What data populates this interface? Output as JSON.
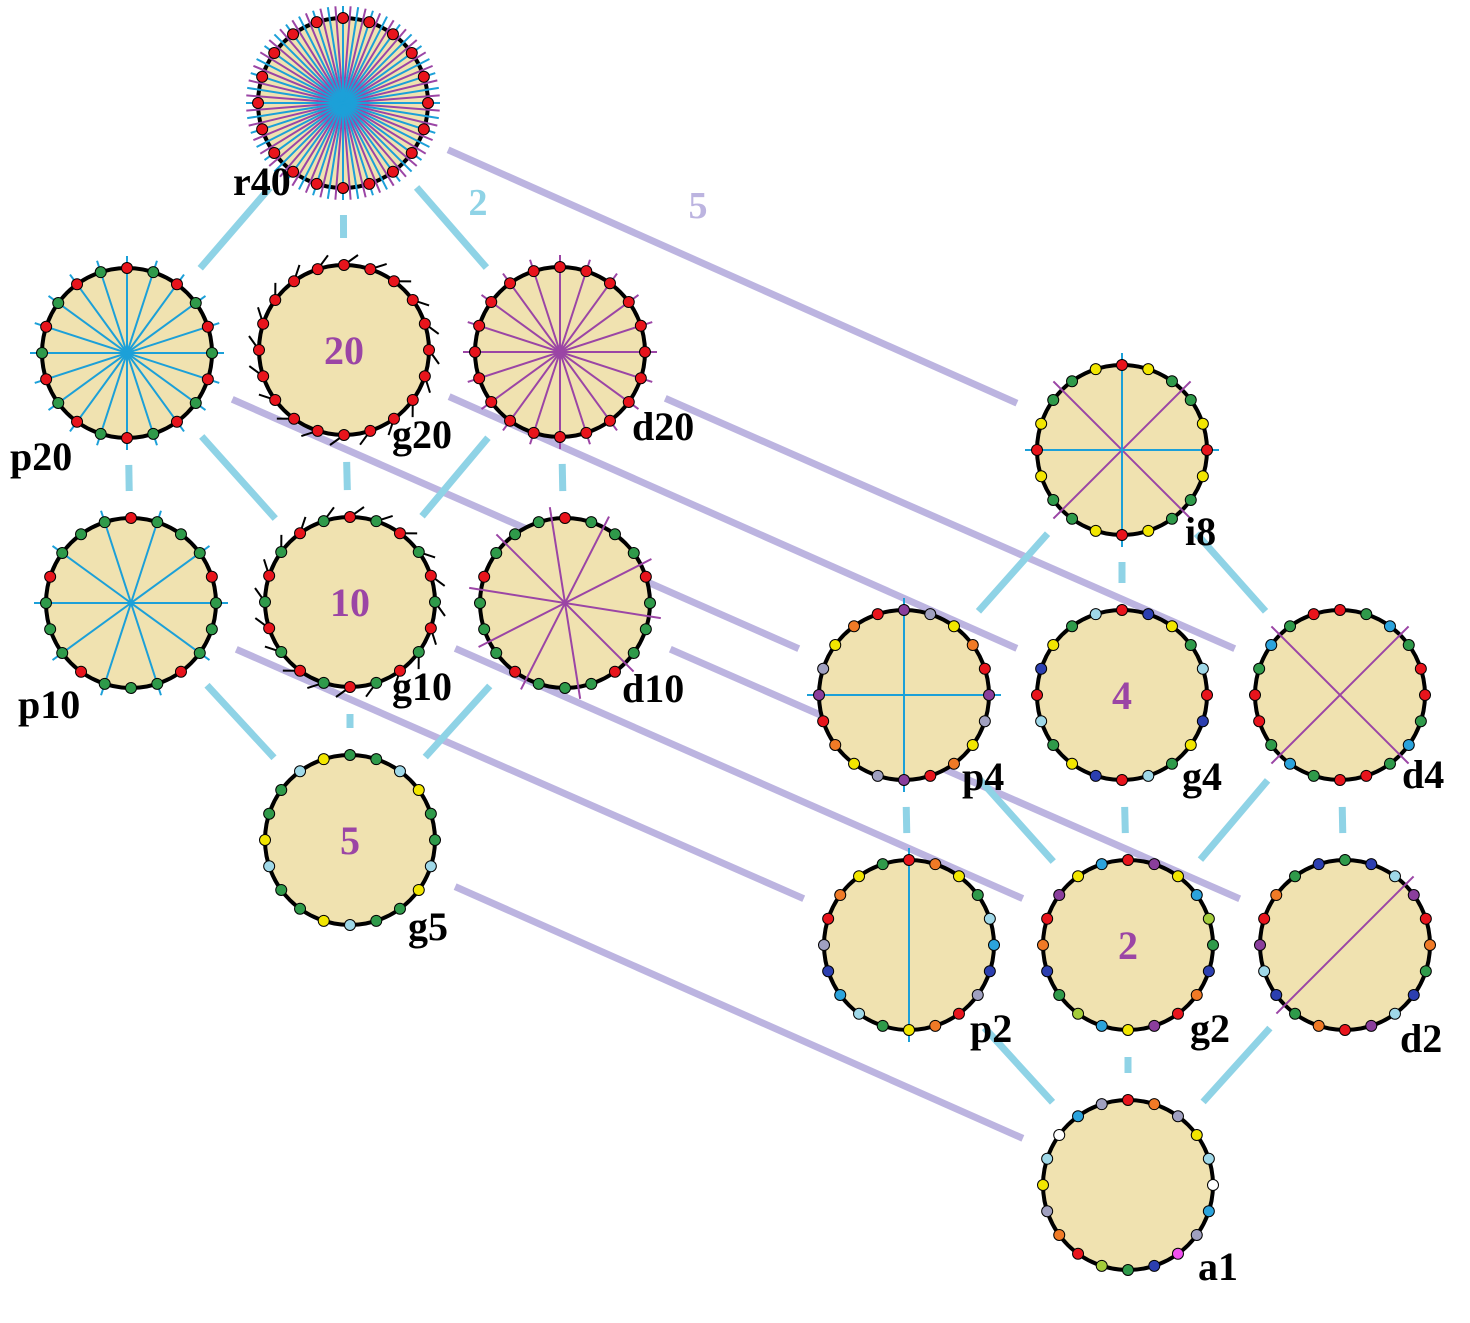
{
  "nodes": [
    {
      "label": "r40"
    },
    {
      "label": "p20"
    },
    {
      "label": "g20",
      "center": "20"
    },
    {
      "label": "d20"
    },
    {
      "label": "p10"
    },
    {
      "label": "g10",
      "center": "10"
    },
    {
      "label": "d10"
    },
    {
      "label": "g5",
      "center": "5"
    },
    {
      "label": "i8"
    },
    {
      "label": "p4"
    },
    {
      "label": "g4",
      "center": "4"
    },
    {
      "label": "d4"
    },
    {
      "label": "p2"
    },
    {
      "label": "g2",
      "center": "2"
    },
    {
      "label": "d2"
    },
    {
      "label": "a1"
    }
  ],
  "edge_labels": [
    "2",
    "5"
  ]
}
